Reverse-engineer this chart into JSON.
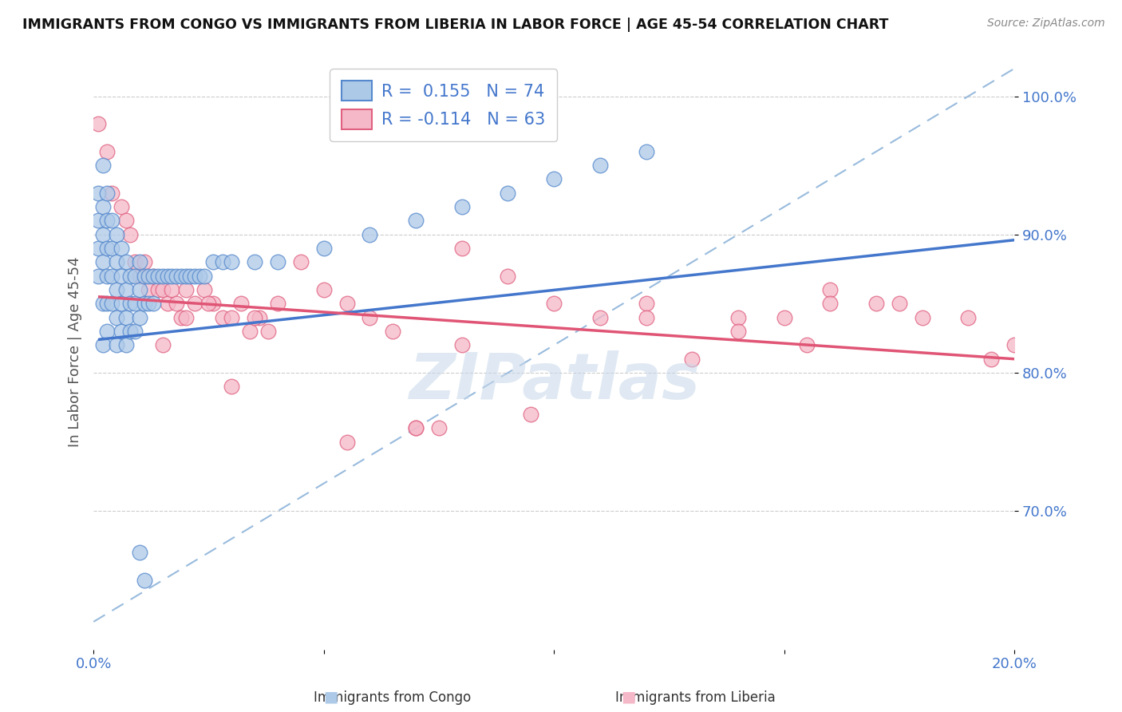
{
  "title": "IMMIGRANTS FROM CONGO VS IMMIGRANTS FROM LIBERIA IN LABOR FORCE | AGE 45-54 CORRELATION CHART",
  "source": "Source: ZipAtlas.com",
  "ylabel": "In Labor Force | Age 45-54",
  "xlim": [
    0.0,
    0.2
  ],
  "ylim": [
    0.6,
    1.03
  ],
  "ytick_positions": [
    0.7,
    0.8,
    0.9,
    1.0
  ],
  "ytick_labels": [
    "70.0%",
    "80.0%",
    "90.0%",
    "100.0%"
  ],
  "xtick_positions": [
    0.0,
    0.05,
    0.1,
    0.15,
    0.2
  ],
  "xtick_labels": [
    "0.0%",
    "",
    "",
    "",
    "20.0%"
  ],
  "congo_color": "#adc9e8",
  "liberia_color": "#f5b8c8",
  "congo_edge_color": "#5588cc",
  "liberia_edge_color": "#e06080",
  "congo_line_color": "#4477cc",
  "liberia_line_color": "#e05575",
  "dashed_color": "#99bbdd",
  "tick_color": "#4477cc",
  "watermark_text": "ZIPatlas",
  "congo_R": "0.155",
  "congo_N": "74",
  "liberia_R": "-0.114",
  "liberia_N": "63",
  "congo_scatter_x": [
    0.001,
    0.001,
    0.001,
    0.001,
    0.002,
    0.002,
    0.002,
    0.002,
    0.002,
    0.002,
    0.003,
    0.003,
    0.003,
    0.003,
    0.003,
    0.003,
    0.004,
    0.004,
    0.004,
    0.004,
    0.005,
    0.005,
    0.005,
    0.005,
    0.005,
    0.006,
    0.006,
    0.006,
    0.006,
    0.007,
    0.007,
    0.007,
    0.007,
    0.008,
    0.008,
    0.008,
    0.009,
    0.009,
    0.009,
    0.01,
    0.01,
    0.01,
    0.011,
    0.011,
    0.012,
    0.012,
    0.013,
    0.013,
    0.014,
    0.015,
    0.016,
    0.017,
    0.018,
    0.019,
    0.02,
    0.021,
    0.022,
    0.023,
    0.024,
    0.026,
    0.028,
    0.03,
    0.035,
    0.04,
    0.05,
    0.06,
    0.07,
    0.08,
    0.09,
    0.1,
    0.11,
    0.12,
    0.01,
    0.011
  ],
  "congo_scatter_y": [
    0.93,
    0.91,
    0.89,
    0.87,
    0.95,
    0.92,
    0.9,
    0.88,
    0.85,
    0.82,
    0.93,
    0.91,
    0.89,
    0.87,
    0.85,
    0.83,
    0.91,
    0.89,
    0.87,
    0.85,
    0.9,
    0.88,
    0.86,
    0.84,
    0.82,
    0.89,
    0.87,
    0.85,
    0.83,
    0.88,
    0.86,
    0.84,
    0.82,
    0.87,
    0.85,
    0.83,
    0.87,
    0.85,
    0.83,
    0.88,
    0.86,
    0.84,
    0.87,
    0.85,
    0.87,
    0.85,
    0.87,
    0.85,
    0.87,
    0.87,
    0.87,
    0.87,
    0.87,
    0.87,
    0.87,
    0.87,
    0.87,
    0.87,
    0.87,
    0.88,
    0.88,
    0.88,
    0.88,
    0.88,
    0.89,
    0.9,
    0.91,
    0.92,
    0.93,
    0.94,
    0.95,
    0.96,
    0.67,
    0.65
  ],
  "liberia_scatter_x": [
    0.001,
    0.003,
    0.004,
    0.006,
    0.008,
    0.009,
    0.01,
    0.011,
    0.012,
    0.013,
    0.014,
    0.015,
    0.016,
    0.017,
    0.018,
    0.019,
    0.02,
    0.022,
    0.024,
    0.026,
    0.028,
    0.03,
    0.032,
    0.034,
    0.036,
    0.038,
    0.04,
    0.045,
    0.05,
    0.055,
    0.06,
    0.065,
    0.07,
    0.08,
    0.09,
    0.1,
    0.11,
    0.12,
    0.13,
    0.14,
    0.15,
    0.16,
    0.17,
    0.18,
    0.19,
    0.2,
    0.007,
    0.025,
    0.035,
    0.075,
    0.095,
    0.16,
    0.175,
    0.015,
    0.02,
    0.03,
    0.055,
    0.07,
    0.08,
    0.12,
    0.14,
    0.155,
    0.195
  ],
  "liberia_scatter_y": [
    0.98,
    0.96,
    0.93,
    0.92,
    0.9,
    0.88,
    0.87,
    0.88,
    0.86,
    0.87,
    0.86,
    0.86,
    0.85,
    0.86,
    0.85,
    0.84,
    0.86,
    0.85,
    0.86,
    0.85,
    0.84,
    0.84,
    0.85,
    0.83,
    0.84,
    0.83,
    0.85,
    0.88,
    0.86,
    0.85,
    0.84,
    0.83,
    0.76,
    0.89,
    0.87,
    0.85,
    0.84,
    0.85,
    0.81,
    0.84,
    0.84,
    0.86,
    0.85,
    0.84,
    0.84,
    0.82,
    0.91,
    0.85,
    0.84,
    0.76,
    0.77,
    0.85,
    0.85,
    0.82,
    0.84,
    0.79,
    0.75,
    0.76,
    0.82,
    0.84,
    0.83,
    0.82,
    0.81
  ],
  "congo_trend_x": [
    0.001,
    0.2
  ],
  "congo_trend_y": [
    0.824,
    0.896
  ],
  "liberia_trend_x": [
    0.001,
    0.2
  ],
  "liberia_trend_y": [
    0.855,
    0.81
  ],
  "dashed_trend_x": [
    0.0,
    0.2
  ],
  "dashed_trend_y": [
    0.62,
    1.02
  ]
}
